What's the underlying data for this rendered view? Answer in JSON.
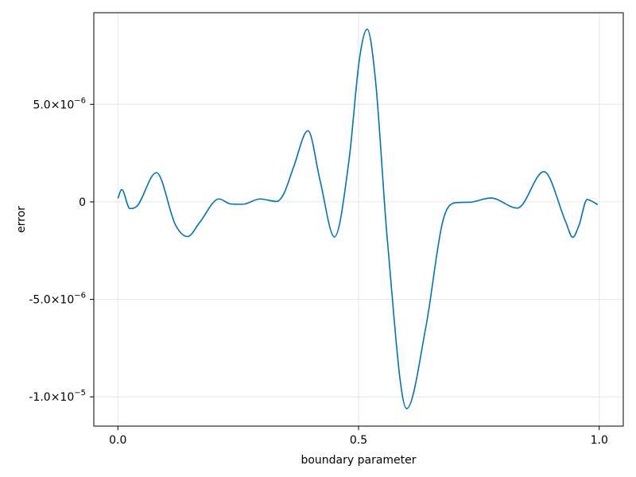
{
  "chart_data": {
    "type": "line",
    "xlabel": "boundary parameter",
    "ylabel": "error",
    "xlim": [
      -0.05,
      1.05
    ],
    "ylim": [
      -1.15e-05,
      9.7e-06
    ],
    "grid": true,
    "colors": {
      "line": "#0072b2",
      "grid": "#e6e6e6",
      "frame": "#000000"
    },
    "x_ticks": [
      {
        "value": 0.0,
        "label": "0.0"
      },
      {
        "value": 0.5,
        "label": "0.5"
      },
      {
        "value": 1.0,
        "label": "1.0"
      }
    ],
    "y_ticks": [
      {
        "value": 5e-06,
        "mant": "5.0×10",
        "exp": "−6"
      },
      {
        "value": 0,
        "mant": "0",
        "exp": ""
      },
      {
        "value": -5e-06,
        "mant": "-5.0×10",
        "exp": "−6"
      },
      {
        "value": -1e-05,
        "mant": "-1.0×10",
        "exp": "−5"
      }
    ],
    "series": [
      {
        "x": [
          0.0,
          0.008,
          0.025,
          0.04,
          0.08,
          0.12,
          0.145,
          0.17,
          0.21,
          0.235,
          0.26,
          0.295,
          0.33,
          0.345,
          0.365,
          0.395,
          0.42,
          0.45,
          0.48,
          0.502,
          0.518,
          0.535,
          0.56,
          0.6,
          0.64,
          0.675,
          0.7,
          0.73,
          0.775,
          0.83,
          0.885,
          0.93,
          0.945,
          0.958,
          0.975,
          0.985,
          0.997
        ],
        "y": [
          1.8e-07,
          6.3e-07,
          -3.4e-07,
          -2.1e-07,
          1.5e-06,
          -1.2e-06,
          -1.78e-06,
          -1.05e-06,
          1.5e-07,
          -1.1e-07,
          -1.2e-07,
          1.5e-07,
          2e-08,
          4.3e-07,
          1.78e-06,
          3.65e-06,
          1.1e-06,
          -1.8e-06,
          2.1e-06,
          7.35e-06,
          8.85e-06,
          6.3e-06,
          -2e-06,
          -1.06e-05,
          -6.4e-06,
          -1e-06,
          -5e-08,
          -2e-08,
          2e-07,
          -3.2e-07,
          1.55e-06,
          -1e-06,
          -1.82e-06,
          -1.2e-06,
          1.2e-07,
          3e-08,
          -1.5e-07
        ]
      }
    ]
  }
}
